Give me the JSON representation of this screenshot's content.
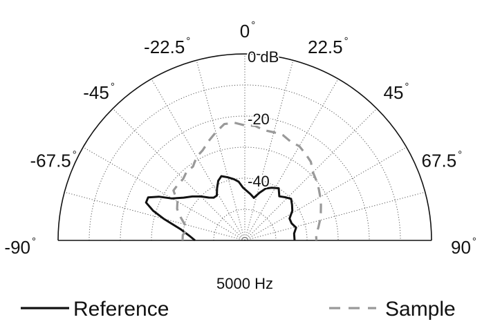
{
  "chart_data": {
    "type": "polar-line",
    "title": "5000 Hz",
    "angle_unit": "degrees",
    "angle_range": [
      -90,
      90
    ],
    "angle_ticks": [
      {
        "value": -90,
        "label": "-90"
      },
      {
        "value": -67.5,
        "label": "-67.5"
      },
      {
        "value": -45,
        "label": "-45"
      },
      {
        "value": -22.5,
        "label": "-22.5"
      },
      {
        "value": 0,
        "label": "0"
      },
      {
        "value": 22.5,
        "label": "22.5"
      },
      {
        "value": 45,
        "label": "45"
      },
      {
        "value": 67.5,
        "label": "67.5"
      },
      {
        "value": 90,
        "label": "90"
      }
    ],
    "degree_symbol": "°",
    "radial_range_db": [
      -60,
      0
    ],
    "radial_ticks": [
      {
        "value": 0,
        "label": "0 dB"
      },
      {
        "value": -20,
        "label": "-20"
      },
      {
        "value": -40,
        "label": "-40"
      }
    ],
    "grid": true,
    "legend_position": "bottom",
    "series": [
      {
        "name": "Reference",
        "color": "#111111",
        "style": "solid",
        "points": [
          {
            "angle": -90,
            "db": -44
          },
          {
            "angle": -85,
            "db": -42
          },
          {
            "angle": -80,
            "db": -39
          },
          {
            "angle": -75,
            "db": -33
          },
          {
            "angle": -72,
            "db": -29
          },
          {
            "angle": -69,
            "db": -26
          },
          {
            "angle": -66,
            "db": -26
          },
          {
            "angle": -63,
            "db": -29
          },
          {
            "angle": -60,
            "db": -33
          },
          {
            "angle": -55,
            "db": -36
          },
          {
            "angle": -50,
            "db": -38
          },
          {
            "angle": -45,
            "db": -40
          },
          {
            "angle": -40,
            "db": -42
          },
          {
            "angle": -36,
            "db": -43
          },
          {
            "angle": -32,
            "db": -43
          },
          {
            "angle": -28,
            "db": -41
          },
          {
            "angle": -24,
            "db": -39
          },
          {
            "angle": -20,
            "db": -38
          },
          {
            "angle": -15,
            "db": -39
          },
          {
            "angle": -10,
            "db": -40
          },
          {
            "angle": -6,
            "db": -41
          },
          {
            "angle": -2,
            "db": -43
          },
          {
            "angle": 2,
            "db": -44
          },
          {
            "angle": 7,
            "db": -45
          },
          {
            "angle": 12,
            "db": -46
          },
          {
            "angle": 17,
            "db": -44
          },
          {
            "angle": 22,
            "db": -42
          },
          {
            "angle": 27,
            "db": -41
          },
          {
            "angle": 33,
            "db": -40
          },
          {
            "angle": 38,
            "db": -42
          },
          {
            "angle": 43,
            "db": -41
          },
          {
            "angle": 48,
            "db": -40
          },
          {
            "angle": 53,
            "db": -41
          },
          {
            "angle": 58,
            "db": -42
          },
          {
            "angle": 64,
            "db": -44
          },
          {
            "angle": 70,
            "db": -44
          },
          {
            "angle": 76,
            "db": -43
          },
          {
            "angle": 82,
            "db": -44
          },
          {
            "angle": 90,
            "db": -44
          }
        ]
      },
      {
        "name": "Sample",
        "color": "#999999",
        "style": "dashed",
        "points": [
          {
            "angle": -90,
            "db": -40
          },
          {
            "angle": -85,
            "db": -40
          },
          {
            "angle": -80,
            "db": -41
          },
          {
            "angle": -75,
            "db": -40
          },
          {
            "angle": -70,
            "db": -38
          },
          {
            "angle": -65,
            "db": -36
          },
          {
            "angle": -60,
            "db": -35
          },
          {
            "angle": -55,
            "db": -32
          },
          {
            "angle": -50,
            "db": -32
          },
          {
            "angle": -45,
            "db": -32
          },
          {
            "angle": -40,
            "db": -31
          },
          {
            "angle": -35,
            "db": -31
          },
          {
            "angle": -30,
            "db": -29
          },
          {
            "angle": -25,
            "db": -28
          },
          {
            "angle": -20,
            "db": -26
          },
          {
            "angle": -15,
            "db": -24
          },
          {
            "angle": -10,
            "db": -22
          },
          {
            "angle": -5,
            "db": -22
          },
          {
            "angle": 0,
            "db": -23
          },
          {
            "angle": 5,
            "db": -23
          },
          {
            "angle": 10,
            "db": -24
          },
          {
            "angle": 15,
            "db": -24
          },
          {
            "angle": 20,
            "db": -24
          },
          {
            "angle": 25,
            "db": -25
          },
          {
            "angle": 30,
            "db": -25
          },
          {
            "angle": 35,
            "db": -26
          },
          {
            "angle": 40,
            "db": -27
          },
          {
            "angle": 45,
            "db": -29
          },
          {
            "angle": 50,
            "db": -30
          },
          {
            "angle": 55,
            "db": -31
          },
          {
            "angle": 60,
            "db": -32
          },
          {
            "angle": 65,
            "db": -33
          },
          {
            "angle": 70,
            "db": -34
          },
          {
            "angle": 75,
            "db": -35
          },
          {
            "angle": 80,
            "db": -36
          },
          {
            "angle": 85,
            "db": -37
          },
          {
            "angle": 90,
            "db": -37
          }
        ]
      }
    ]
  }
}
